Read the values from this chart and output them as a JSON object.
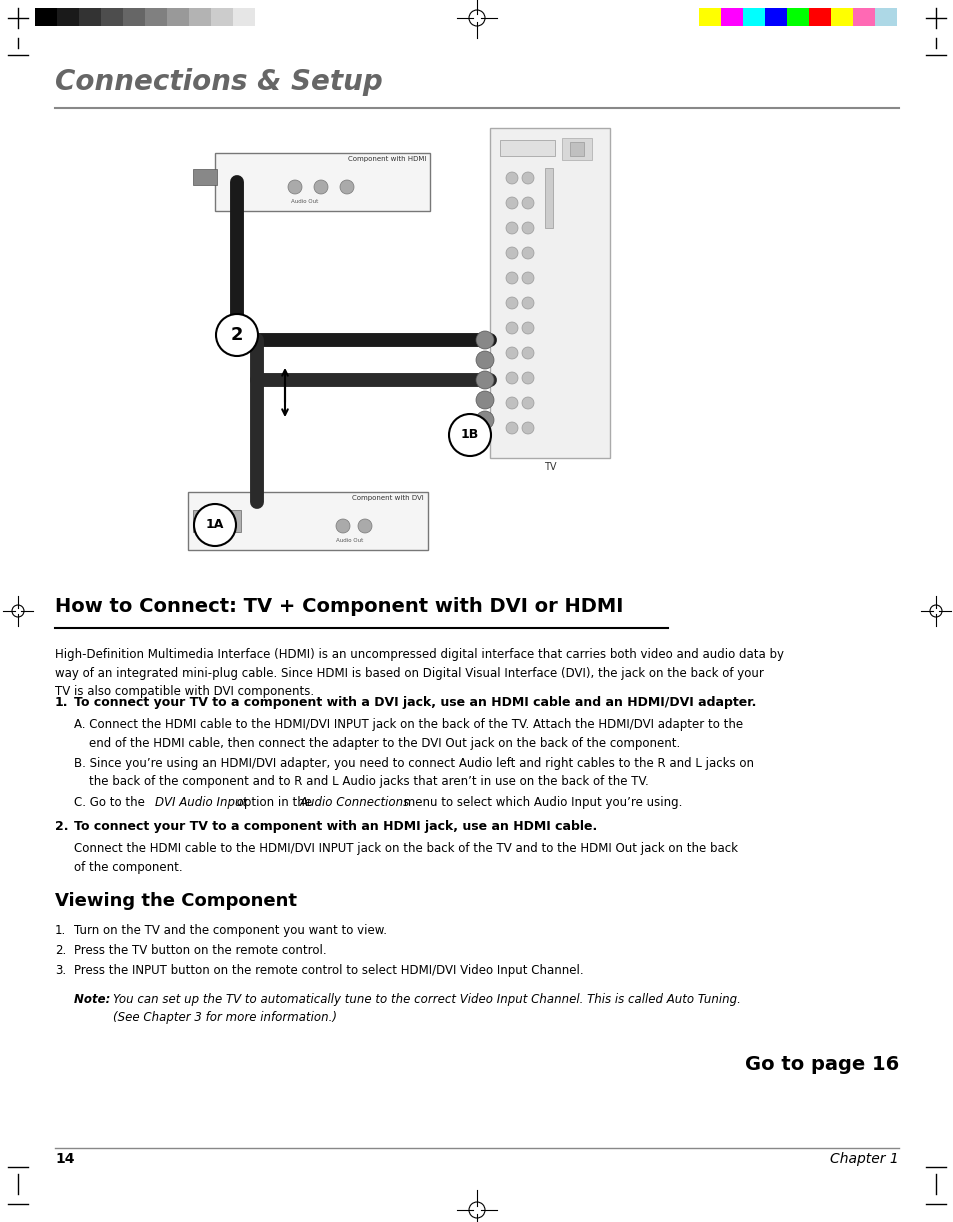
{
  "page_title": "Connections & Setup",
  "section_title": "How to Connect: TV + Component with DVI or HDMI",
  "section_subtitle_viewing": "Viewing the Component",
  "go_to_page": "Go to page 16",
  "chapter": "Chapter 1",
  "page_number": "14",
  "background_color": "#ffffff",
  "title_color": "#666666",
  "text_color": "#000000",
  "section_title_color": "#000000",
  "intro_text": "High-Definition Multimedia Interface (HDMI) is an uncompressed digital interface that carries both video and audio data by\nway of an integrated mini-plug cable. Since HDMI is based on Digital Visual Interface (DVI), the jack on the back of your\nTV is also compatible with DVI components.",
  "item1_bold": "To connect your TV to a component with a DVI jack, use an HDMI cable and an HDMI/DVI adapter.",
  "item1_A": "A. Connect the HDMI cable to the HDMI/DVI INPUT jack on the back of the TV. Attach the HDMI/DVI adapter to the\n    end of the HDMI cable, then connect the adapter to the DVI Out jack on the back of the component.",
  "item1_B": "B. Since you’re using an HDMI/DVI adapter, you need to connect Audio left and right cables to the R and L jacks on\n    the back of the component and to R and L Audio jacks that aren’t in use on the back of the TV.",
  "item1_C_pre": "C. Go to the ",
  "item1_C_italic1": "DVI Audio Input",
  "item1_C_mid": " option in the ",
  "item1_C_italic2": "Audio Connections",
  "item1_C_post": " menu to select which Audio Input you’re using.",
  "item2_bold": "To connect your TV to a component with an HDMI jack, use an HDMI cable.",
  "item2_text": "Connect the HDMI cable to the HDMI/DVI INPUT jack on the back of the TV and to the HDMI Out jack on the back\nof the component.",
  "viewing_1": "Turn on the TV and the component you want to view.",
  "viewing_2": "Press the TV button on the remote control.",
  "viewing_3": "Press the INPUT button on the remote control to select HDMI/DVI Video Input Channel.",
  "note_bold": "Note:",
  "note_italic": "You can set up the TV to automatically tune to the correct Video Input Channel. This is called Auto Tuning.\n(See Chapter 3 for more information.)",
  "color_bars_left": [
    "#000000",
    "#1a1a1a",
    "#333333",
    "#4d4d4d",
    "#666666",
    "#808080",
    "#999999",
    "#b3b3b3",
    "#cccccc",
    "#e6e6e6",
    "#ffffff"
  ],
  "color_bars_right": [
    "#ffff00",
    "#ff00ff",
    "#00ffff",
    "#0000ff",
    "#00ff00",
    "#ff0000",
    "#ffff00",
    "#ff69b4",
    "#add8e6",
    "#ffffff"
  ],
  "printer_marks_color": "#000000"
}
